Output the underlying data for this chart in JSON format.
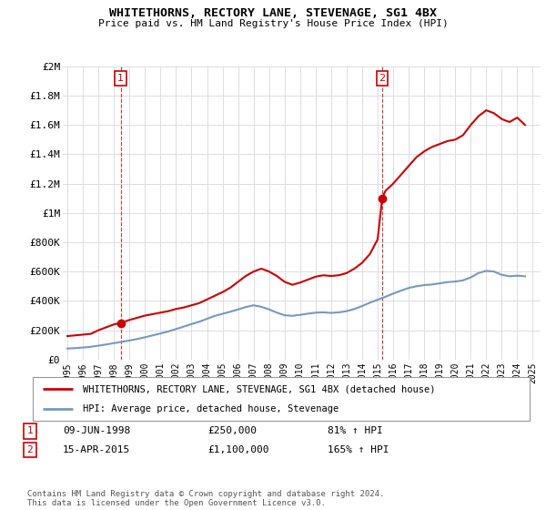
{
  "title": "WHITETHORNS, RECTORY LANE, STEVENAGE, SG1 4BX",
  "subtitle": "Price paid vs. HM Land Registry's House Price Index (HPI)",
  "ylim": [
    0,
    2000000
  ],
  "xlim_start": 1994.7,
  "xlim_end": 2025.5,
  "yticks": [
    0,
    200000,
    400000,
    600000,
    800000,
    1000000,
    1200000,
    1400000,
    1600000,
    1800000,
    2000000
  ],
  "ytick_labels": [
    "£0",
    "£200K",
    "£400K",
    "£600K",
    "£800K",
    "£1M",
    "£1.2M",
    "£1.4M",
    "£1.6M",
    "£1.8M",
    "£2M"
  ],
  "xticks": [
    1995,
    1996,
    1997,
    1998,
    1999,
    2000,
    2001,
    2002,
    2003,
    2004,
    2005,
    2006,
    2007,
    2008,
    2009,
    2010,
    2011,
    2012,
    2013,
    2014,
    2015,
    2016,
    2017,
    2018,
    2019,
    2020,
    2021,
    2022,
    2023,
    2024,
    2025
  ],
  "red_line_color": "#cc0000",
  "blue_line_color": "#7799bb",
  "grid_color": "#dddddd",
  "bg_color": "#ffffff",
  "marker_color": "#cc0000",
  "sale1_x": 1998.44,
  "sale1_y": 250000,
  "sale2_x": 2015.29,
  "sale2_y": 1100000,
  "legend_label_red": "WHITETHORNS, RECTORY LANE, STEVENAGE, SG1 4BX (detached house)",
  "legend_label_blue": "HPI: Average price, detached house, Stevenage",
  "annotation1_label": "1",
  "annotation2_label": "2",
  "copyright": "Contains HM Land Registry data © Crown copyright and database right 2024.\nThis data is licensed under the Open Government Licence v3.0.",
  "red_x": [
    1995.0,
    1995.5,
    1996.0,
    1996.5,
    1997.0,
    1997.5,
    1998.0,
    1998.44,
    1999.0,
    1999.5,
    2000.0,
    2000.5,
    2001.0,
    2001.5,
    2002.0,
    2002.5,
    2003.0,
    2003.5,
    2004.0,
    2004.5,
    2005.0,
    2005.5,
    2006.0,
    2006.5,
    2007.0,
    2007.5,
    2008.0,
    2008.5,
    2009.0,
    2009.5,
    2010.0,
    2010.5,
    2011.0,
    2011.5,
    2012.0,
    2012.5,
    2013.0,
    2013.5,
    2014.0,
    2014.5,
    2015.0,
    2015.29,
    2015.5,
    2016.0,
    2016.5,
    2017.0,
    2017.5,
    2018.0,
    2018.5,
    2019.0,
    2019.5,
    2020.0,
    2020.5,
    2021.0,
    2021.5,
    2022.0,
    2022.5,
    2023.0,
    2023.5,
    2024.0,
    2024.5
  ],
  "red_y": [
    160000,
    165000,
    170000,
    175000,
    200000,
    220000,
    240000,
    250000,
    270000,
    285000,
    300000,
    310000,
    320000,
    330000,
    345000,
    355000,
    370000,
    385000,
    410000,
    435000,
    460000,
    490000,
    530000,
    570000,
    600000,
    620000,
    600000,
    570000,
    530000,
    510000,
    525000,
    545000,
    565000,
    575000,
    570000,
    575000,
    590000,
    620000,
    660000,
    720000,
    820000,
    1100000,
    1150000,
    1200000,
    1260000,
    1320000,
    1380000,
    1420000,
    1450000,
    1470000,
    1490000,
    1500000,
    1530000,
    1600000,
    1660000,
    1700000,
    1680000,
    1640000,
    1620000,
    1650000,
    1600000
  ],
  "blue_x": [
    1995.0,
    1995.5,
    1996.0,
    1996.5,
    1997.0,
    1997.5,
    1998.0,
    1998.5,
    1999.0,
    1999.5,
    2000.0,
    2000.5,
    2001.0,
    2001.5,
    2002.0,
    2002.5,
    2003.0,
    2003.5,
    2004.0,
    2004.5,
    2005.0,
    2005.5,
    2006.0,
    2006.5,
    2007.0,
    2007.5,
    2008.0,
    2008.5,
    2009.0,
    2009.5,
    2010.0,
    2010.5,
    2011.0,
    2011.5,
    2012.0,
    2012.5,
    2013.0,
    2013.5,
    2014.0,
    2014.5,
    2015.0,
    2015.5,
    2016.0,
    2016.5,
    2017.0,
    2017.5,
    2018.0,
    2018.5,
    2019.0,
    2019.5,
    2020.0,
    2020.5,
    2021.0,
    2021.5,
    2022.0,
    2022.5,
    2023.0,
    2023.5,
    2024.0,
    2024.5
  ],
  "blue_y": [
    75000,
    78000,
    82000,
    87000,
    95000,
    103000,
    112000,
    121000,
    130000,
    140000,
    152000,
    165000,
    178000,
    192000,
    208000,
    225000,
    242000,
    258000,
    278000,
    298000,
    312000,
    326000,
    342000,
    358000,
    370000,
    360000,
    342000,
    320000,
    302000,
    298000,
    305000,
    313000,
    320000,
    322000,
    318000,
    322000,
    330000,
    345000,
    365000,
    388000,
    408000,
    428000,
    450000,
    470000,
    488000,
    500000,
    508000,
    512000,
    520000,
    528000,
    532000,
    540000,
    560000,
    590000,
    605000,
    600000,
    578000,
    568000,
    572000,
    568000
  ]
}
